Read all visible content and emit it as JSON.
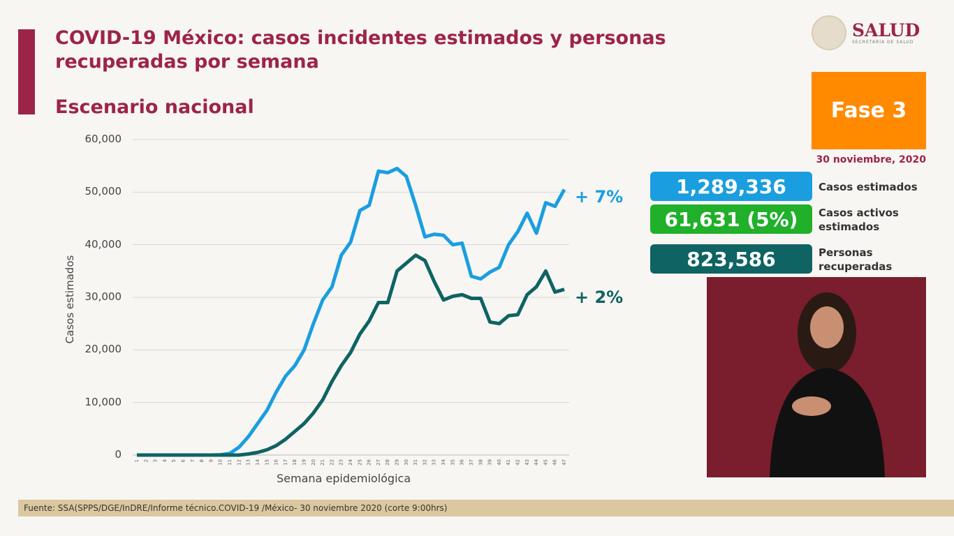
{
  "header": {
    "title": "COVID-19 México: casos incidentes estimados y personas recuperadas por semana",
    "subtitle": "Escenario nacional"
  },
  "logo": {
    "name": "SALUD",
    "sub": "SECRETARÍA DE SALUD"
  },
  "phase": {
    "label": "Fase 3",
    "color": "#ff8a00"
  },
  "date": "30 noviembre, 2020",
  "stats": [
    {
      "value": "1,289,336",
      "label": "Casos estimados",
      "color": "#1a9ee0"
    },
    {
      "value": "61,631 (5%)",
      "label": "Casos activos estimados",
      "color": "#20b02a"
    },
    {
      "value": "823,586",
      "label": "Personas recuperadas",
      "color": "#0f6363"
    }
  ],
  "footer": "Fuente: SSA(SPPS/DGE/InDRE/Informe técnico.COVID-19 /México- 30 noviembre 2020 (corte 9:00hrs)",
  "chart_data": {
    "type": "line",
    "xlabel": "Semana epidemiológica",
    "ylabel": "Casos estimados",
    "ylim": [
      0,
      60000
    ],
    "yticks": [
      "0",
      "10,000",
      "20,000",
      "30,000",
      "40,000",
      "50,000",
      "60,000"
    ],
    "grid": true,
    "x": [
      1,
      2,
      3,
      4,
      5,
      6,
      7,
      8,
      9,
      10,
      11,
      12,
      13,
      14,
      15,
      16,
      17,
      18,
      19,
      20,
      21,
      22,
      23,
      24,
      25,
      26,
      27,
      28,
      29,
      30,
      31,
      32,
      33,
      34,
      35,
      36,
      37,
      38,
      39,
      40,
      41,
      42,
      43,
      44,
      45,
      46,
      47
    ],
    "series": [
      {
        "color": "#1a9ee0",
        "end_label": "+ 7%",
        "values": [
          0,
          0,
          0,
          0,
          0,
          0,
          0,
          0,
          0,
          50,
          300,
          1500,
          3500,
          6000,
          8500,
          12000,
          15000,
          17000,
          20000,
          25000,
          29500,
          32000,
          38000,
          40500,
          46500,
          47500,
          54000,
          53700,
          54500,
          53000,
          47500,
          41500,
          42000,
          41800,
          40000,
          40300,
          34000,
          33500,
          34800,
          35700,
          40000,
          42500,
          46000,
          42200,
          48000,
          47300,
          50500
        ]
      },
      {
        "color": "#0f6363",
        "end_label": "+ 2%",
        "values": [
          0,
          0,
          0,
          0,
          0,
          0,
          0,
          0,
          0,
          0,
          0,
          0,
          200,
          500,
          1000,
          1800,
          3000,
          4500,
          6000,
          8000,
          10500,
          14000,
          17000,
          19500,
          23000,
          25500,
          29000,
          29000,
          35000,
          36500,
          38000,
          37000,
          33000,
          29500,
          30200,
          30500,
          29800,
          29800,
          25300,
          25000,
          26500,
          26700,
          30500,
          32000,
          35000,
          31000,
          31500
        ]
      }
    ]
  }
}
